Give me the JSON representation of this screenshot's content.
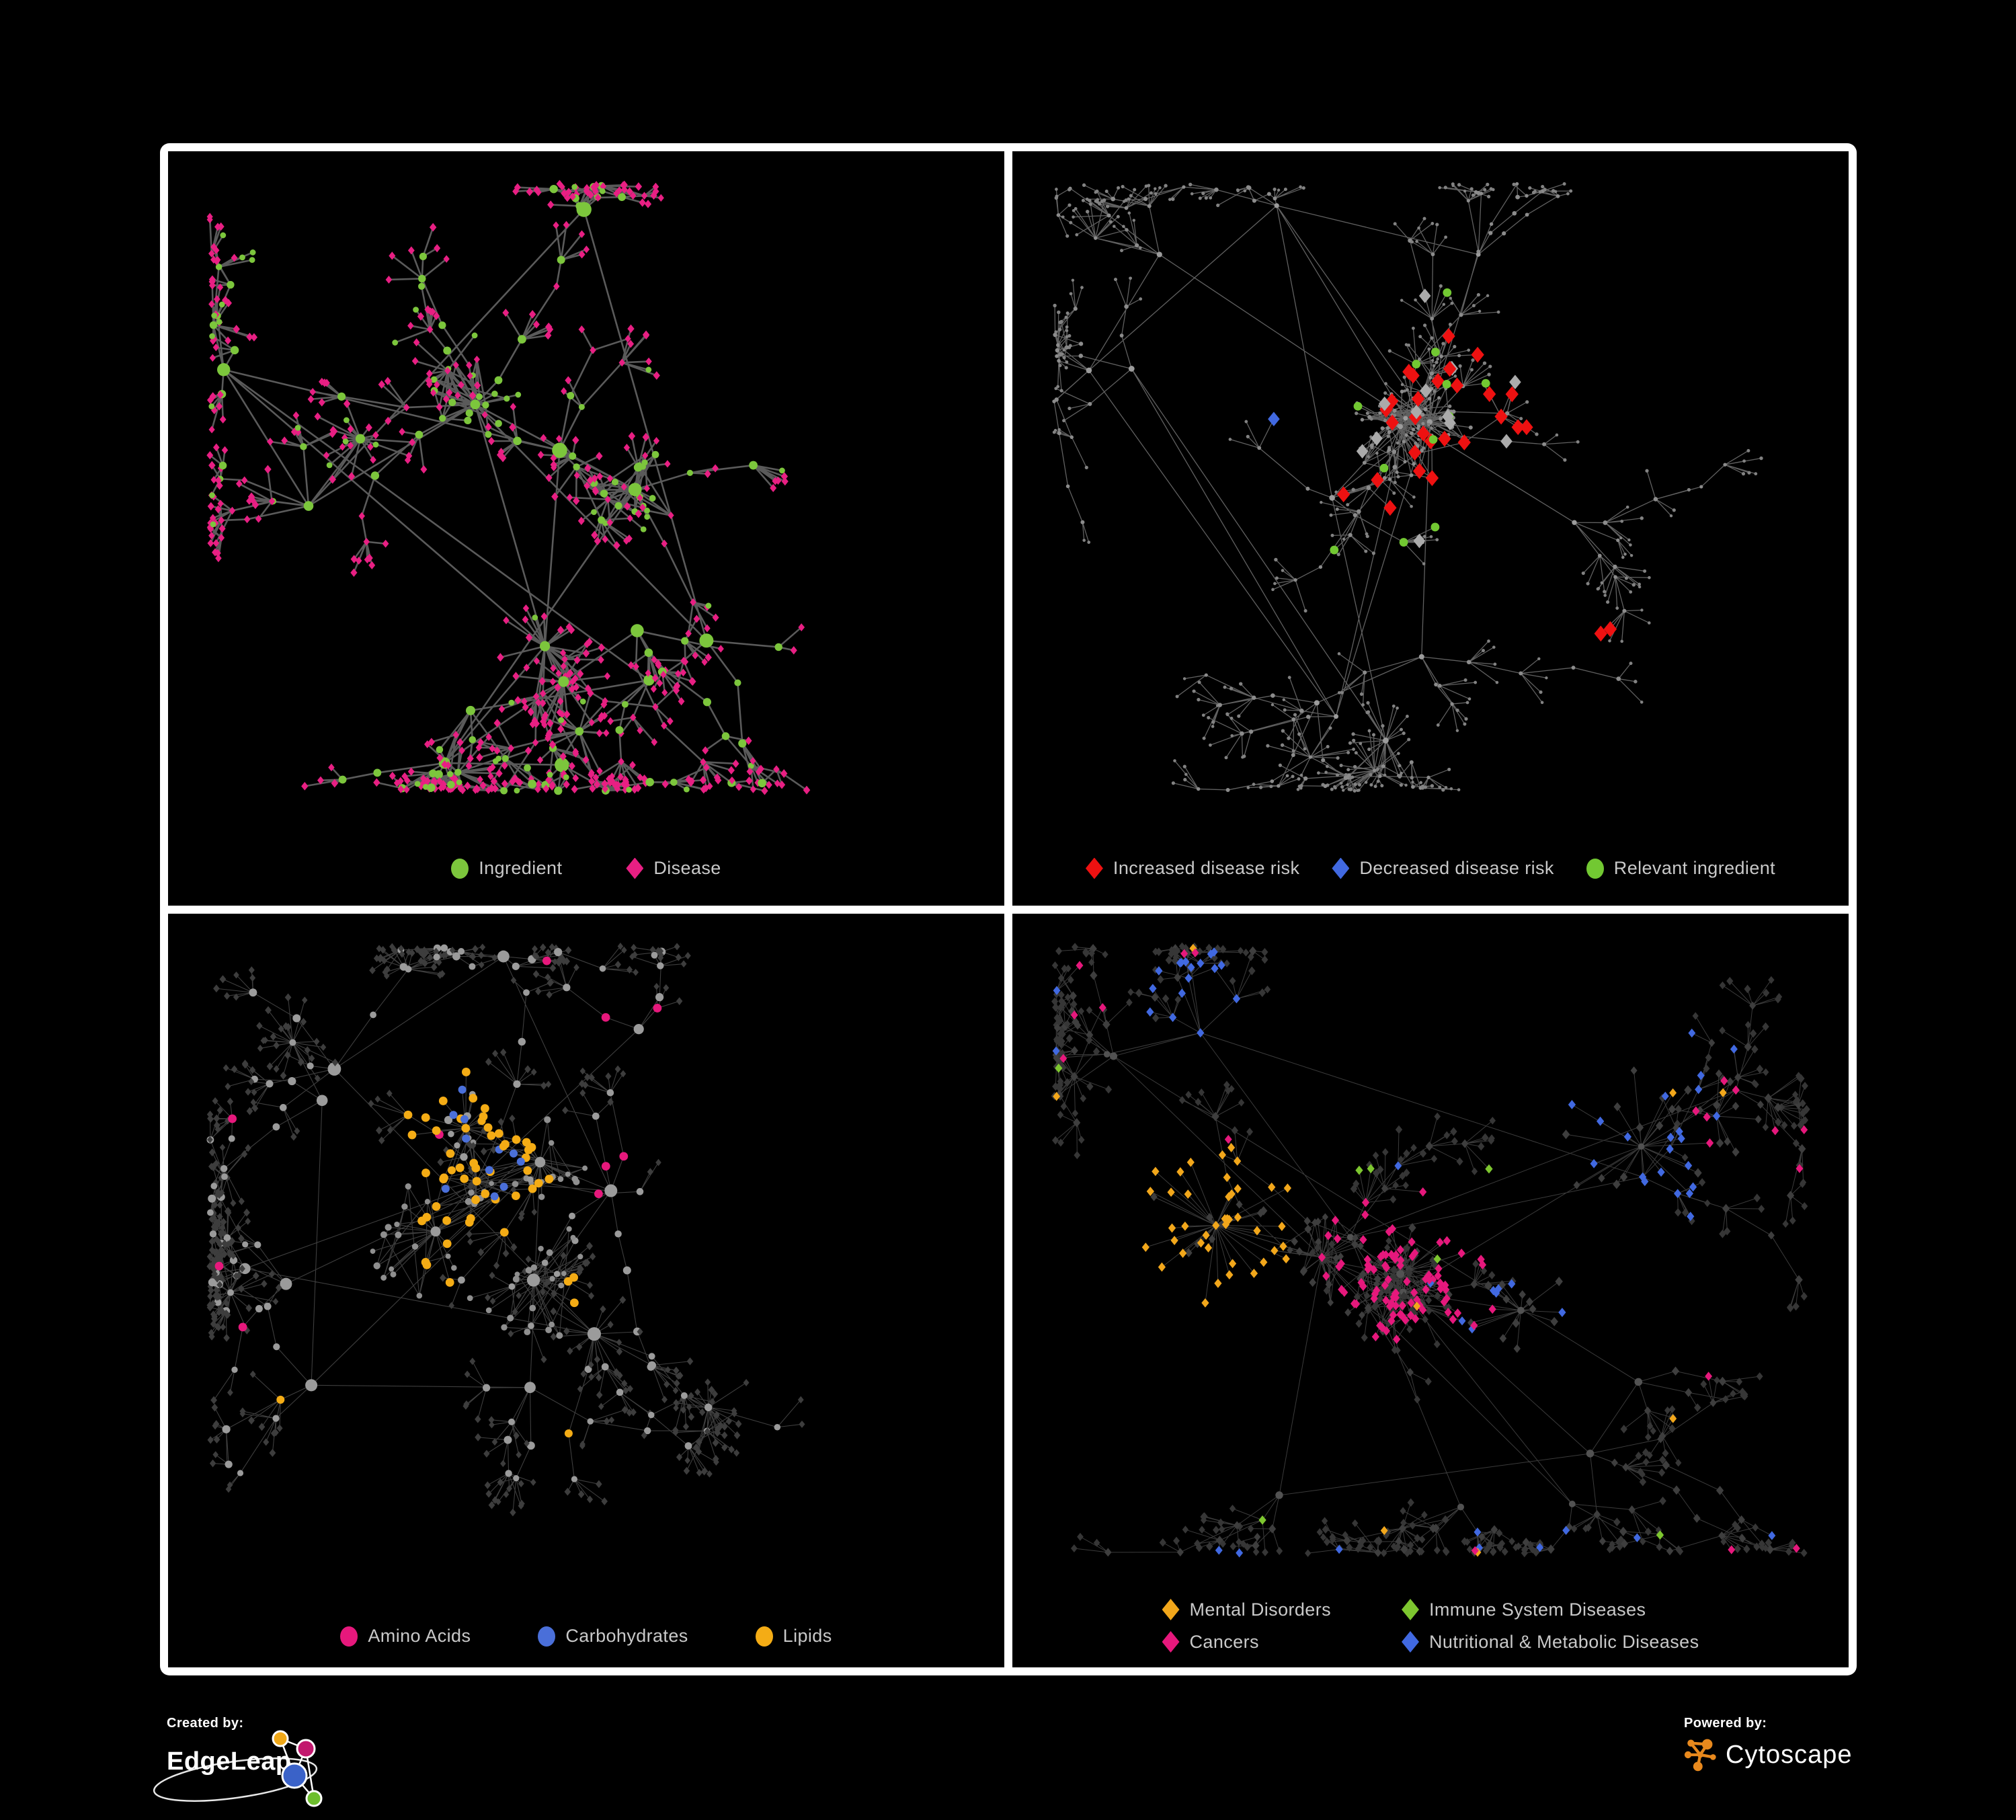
{
  "figure": {
    "background": "#000000",
    "frame_color": "#ffffff"
  },
  "panels": [
    {
      "id": "ingredient-disease",
      "legend": [
        {
          "label": "Ingredient",
          "shape": "circle",
          "color": "#7CC63C"
        },
        {
          "label": "Disease",
          "shape": "diamond",
          "color": "#E81F83"
        }
      ],
      "gen": {
        "seed": 7,
        "hubs": 13,
        "core": 21,
        "fanP": 0.5,
        "fanMax": 7,
        "bursts": 6,
        "xb": [
          [
            0.47,
            0.82,
            24,
            70,
            "leaf"
          ],
          [
            0.2,
            0.42,
            20,
            64,
            "leaf"
          ]
        ],
        "base": {
          "hub": [
            "c",
            "#7CC63C",
            7,
            5
          ],
          "chain": [
            "c",
            "#7CC63C",
            4.5,
            2
          ],
          "core": [
            "c",
            "#7CC63C",
            4.2,
            1.5
          ],
          "leaf": [
            "d",
            "#E81F83",
            5.2,
            0.8
          ]
        },
        "rules": [
          {
            "roles": [
              "chain"
            ],
            "p": 0.35,
            "s2": "d",
            "c": "#E81F83",
            "sz": 5.4
          },
          {
            "roles": [
              "core"
            ],
            "p": 0.3,
            "s2": "d",
            "c": "#E81F83",
            "sz": 5.2
          },
          {
            "roles": [
              "leaf"
            ],
            "p": 0.07,
            "s2": "c",
            "c": "#7CC63C",
            "sz": 4.4
          }
        ],
        "edge": [
          "#6A6A6A",
          2.6,
          0.85
        ]
      }
    },
    {
      "id": "disease-risk",
      "legend": [
        {
          "label": "Increased disease risk",
          "shape": "diamond",
          "color": "#EE1111"
        },
        {
          "label": "Decreased disease risk",
          "shape": "diamond",
          "color": "#4169E1"
        },
        {
          "label": "Relevant ingredient",
          "shape": "circle",
          "color": "#72C832"
        }
      ],
      "gen": {
        "seed": 17,
        "hubs": 13,
        "core": 22,
        "fanP": 0.45,
        "fanMax": 6,
        "bursts": 6,
        "xb": [
          [
            0.46,
            0.4,
            20,
            80,
            "core"
          ]
        ],
        "base": {
          "hub": [
            "c",
            "#9C9C9C",
            3.4,
            1
          ],
          "chain": [
            "c",
            "#8C8C8C",
            2.6,
            0.8
          ],
          "core": [
            "c",
            "#8C8C8C",
            2.4,
            0.7
          ],
          "leaf": [
            "c",
            "#828282",
            2.2,
            0.5
          ]
        },
        "rules": [
          {
            "z": [
              [
                0.42,
                0.34,
                0.16
              ],
              [
                0.56,
                0.43,
                0.11
              ],
              [
                0.31,
                0.4,
                0.06
              ],
              [
                0.73,
                0.75,
                0.045
              ]
            ],
            "p": 0.14,
            "s2": "d",
            "c": "#EE1111",
            "sz": 11
          },
          {
            "roles": [
              "chain",
              "core",
              "leaf"
            ],
            "z": [
              [
                0.295,
                0.335,
                0.05
              ],
              [
                0.87,
                0.265,
                0.032
              ]
            ],
            "p": 0.5,
            "s2": "d",
            "c": "#4169E1",
            "sz": 10
          },
          {
            "z": [
              [
                0.46,
                0.4,
                0.2
              ]
            ],
            "p": 0.05,
            "s2": "d",
            "c": "#ABABAB",
            "sz": 10
          },
          {
            "z": [
              [
                0.4,
                0.36,
                0.2
              ],
              [
                0.24,
                0.33,
                0.09
              ],
              [
                0.58,
                0.45,
                0.09
              ]
            ],
            "p": 0.09,
            "s2": "c",
            "c": "#72C832",
            "sz": 6.4
          }
        ],
        "edge": [
          "#787878",
          1.3,
          0.8
        ]
      }
    },
    {
      "id": "nutrients",
      "legend": [
        {
          "label": "Amino Acids",
          "shape": "circle",
          "color": "#E6187C"
        },
        {
          "label": "Carbohydrates",
          "shape": "circle",
          "color": "#4A6FD9"
        },
        {
          "label": "Lipids",
          "shape": "circle",
          "color": "#F4AC15"
        }
      ],
      "gen": {
        "seed": 27,
        "hubs": 12,
        "core": 22,
        "fanP": 0.5,
        "fanMax": 7,
        "bursts": 6,
        "xb": [
          [
            0.3,
            0.47,
            28,
            92,
            "core"
          ],
          [
            0.43,
            0.55,
            24,
            88,
            "core"
          ],
          [
            0.34,
            0.3,
            26,
            80,
            "chain"
          ]
        ],
        "base": {
          "hub": [
            "c",
            "#9B9B9B",
            7.5,
            3
          ],
          "chain": [
            "c",
            "#9B9B9B",
            4.6,
            1.6
          ],
          "core": [
            "c",
            "#8F8F8F",
            3.8,
            1.4
          ],
          "leaf": [
            "d",
            "#3D3D3D",
            4.8,
            0.8
          ]
        },
        "rules": [
          {
            "roles": [
              "chain",
              "core",
              "hub"
            ],
            "z": [
              [
                0.34,
                0.28,
                0.09
              ],
              [
                0.37,
                0.41,
                0.1
              ],
              [
                0.29,
                0.51,
                0.055
              ],
              [
                0.52,
                0.57,
                0.05
              ]
            ],
            "p": 0.55,
            "s2": "c",
            "c": "#F4AC15",
            "sz": 6.4
          },
          {
            "roles": [
              "chain",
              "core"
            ],
            "z": [
              [
                0.36,
                0.4,
                0.065
              ],
              [
                0.31,
                0.27,
                0.05
              ]
            ],
            "p": 0.32,
            "s2": "c",
            "c": "#4A6FD9",
            "sz": 6
          },
          {
            "roles": [
              "chain"
            ],
            "p": 0.05,
            "s2": "c",
            "c": "#E6187C",
            "sz": 6.4
          },
          {
            "roles": [
              "chain"
            ],
            "p": 0.04,
            "s2": "c",
            "c": "#F4AC15",
            "sz": 6
          },
          {
            "roles": [
              "leaf"
            ],
            "z": [
              [
                0.55,
                0.15,
                0.1
              ],
              [
                0.85,
                0.35,
                0.1
              ]
            ],
            "p": 0.06,
            "s2": "c",
            "c": "#E6187C",
            "sz": 6
          }
        ],
        "edge": [
          "#9A9A9A",
          1.1,
          0.4
        ]
      }
    },
    {
      "id": "disease-categories",
      "legend": [
        {
          "label": "Mental Disorders",
          "shape": "diamond",
          "color": "#F2A71B"
        },
        {
          "label": "Immune System Diseases",
          "shape": "diamond",
          "color": "#7DC62F"
        },
        {
          "label": "Cancers",
          "shape": "diamond",
          "color": "#E6187C"
        },
        {
          "label": "Nutritional & Metabolic Diseases",
          "shape": "diamond",
          "color": "#4169E1"
        }
      ],
      "gen": {
        "seed": 37,
        "hubs": 13,
        "core": 24,
        "fanP": 0.5,
        "fanMax": 7,
        "bursts": 6,
        "xb": [
          [
            0.215,
            0.46,
            42,
            110,
            "chain"
          ],
          [
            0.46,
            0.54,
            30,
            100,
            "chain"
          ],
          [
            0.78,
            0.33,
            24,
            110,
            "chain"
          ],
          [
            0.62,
            0.6,
            18,
            70,
            "chain"
          ],
          [
            0.88,
            0.28,
            12,
            60,
            "chain"
          ]
        ],
        "base": {
          "hub": [
            "c",
            "#525252",
            4.6,
            1.4
          ],
          "chain": [
            "d",
            "#3E3E3E",
            5.6,
            1
          ],
          "core": [
            "d",
            "#3E3E3E",
            5.2,
            1
          ],
          "leaf": [
            "d",
            "#363636",
            5.2,
            0.8
          ]
        },
        "rules": [
          {
            "z": [
              [
                0.215,
                0.46,
                0.115
              ],
              [
                0.29,
                0.4,
                0.05
              ]
            ],
            "p": 0.8,
            "s2": "d",
            "c": "#F2A71B",
            "sz": 6.4
          },
          {
            "z": [
              [
                0.46,
                0.54,
                0.115
              ],
              [
                0.53,
                0.63,
                0.06
              ],
              [
                0.88,
                0.28,
                0.05
              ]
            ],
            "p": 0.5,
            "s2": "d",
            "c": "#E6187C",
            "sz": 6.4
          },
          {
            "z": [
              [
                0.625,
                0.6,
                0.06
              ],
              [
                0.78,
                0.33,
                0.13
              ],
              [
                0.62,
                0.12,
                0.1
              ],
              [
                0.36,
                0.78,
                0.055
              ],
              [
                0.2,
                0.12,
                0.09
              ]
            ],
            "p": 0.4,
            "s2": "d",
            "c": "#4169E1",
            "sz": 6.4
          },
          {
            "p": 0.03,
            "s2": "d",
            "c": "#4169E1",
            "sz": 6.2
          },
          {
            "p": 0.02,
            "s2": "d",
            "c": "#E6187C",
            "sz": 6.2
          },
          {
            "p": 0.018,
            "s2": "d",
            "c": "#F2A71B",
            "sz": 6.2
          },
          {
            "p": 0.013,
            "s2": "d",
            "c": "#7DC62F",
            "sz": 6.4
          }
        ],
        "edge": [
          "#A3A3A3",
          1.0,
          0.36
        ]
      }
    }
  ],
  "credits": {
    "left": {
      "prefix": "Created by:",
      "brand": "EdgeLeap"
    },
    "right": {
      "prefix": "Powered by:",
      "brand": "Cytoscape",
      "accent": "#E8891D"
    }
  },
  "logo_colors": {
    "yellow": "#F0A818",
    "magenta": "#C2186E",
    "blue": "#3A62C8",
    "green": "#6DBE2D"
  }
}
